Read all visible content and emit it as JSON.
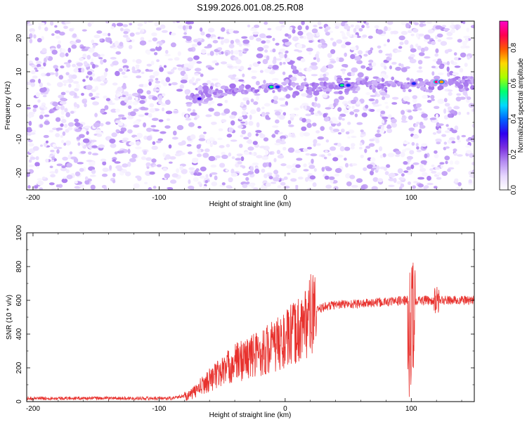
{
  "figure_title": "S199.2026.001.08.25.R08",
  "chart_data": [
    {
      "type": "heatmap",
      "title": "S199.2026.001.08.25.R08",
      "xlabel": "Height of straight line (km)",
      "ylabel": "Frequency (Hz)",
      "xlim": [
        -205,
        150
      ],
      "ylim": [
        -25,
        25
      ],
      "x_ticks": [
        -200,
        -100,
        0,
        100
      ],
      "y_ticks": [
        -20,
        -10,
        0,
        10,
        20
      ],
      "colorbar": {
        "label": "Normalized spectral amplitude",
        "range": [
          0,
          0.95
        ],
        "ticks": [
          0.0,
          0.2,
          0.4,
          0.6,
          0.8
        ],
        "tick_labels": [
          "0.0",
          "0.2",
          "0.4",
          "0.6",
          "0.8"
        ],
        "colors": [
          "#ffffff",
          "#e6d6ff",
          "#b58cf2",
          "#7a2ee0",
          "#2f00f0",
          "#0060ff",
          "#00d8ff",
          "#00ff70",
          "#a8ff00",
          "#ffd800",
          "#ff5a00",
          "#ff0050",
          "#ff00c8"
        ]
      },
      "signal_band": {
        "x_start": -75,
        "frequency_hz": [
          [
            -70,
            3
          ],
          [
            -10,
            5.5
          ],
          [
            45,
            6
          ],
          [
            100,
            6.5
          ],
          [
            125,
            7
          ],
          [
            150,
            7
          ]
        ]
      },
      "hotspots": [
        {
          "x": -68,
          "f": 2,
          "value": 0.3
        },
        {
          "x": -11,
          "f": 5.5,
          "value": 0.55
        },
        {
          "x": -6,
          "f": 5.5,
          "value": 0.35
        },
        {
          "x": 45,
          "f": 6,
          "value": 0.55
        },
        {
          "x": 50,
          "f": 6,
          "value": 0.35
        },
        {
          "x": 102,
          "f": 6.5,
          "value": 0.35
        },
        {
          "x": 120,
          "f": 7,
          "value": 0.9
        },
        {
          "x": 124,
          "f": 7,
          "value": 0.75
        }
      ]
    },
    {
      "type": "line",
      "xlabel": "Height of straight line (km)",
      "ylabel": "SNR (10 * v/v)",
      "xlim": [
        -205,
        150
      ],
      "ylim": [
        0,
        1000
      ],
      "x_ticks": [
        -200,
        -100,
        0,
        100
      ],
      "y_ticks": [
        0,
        200,
        400,
        600,
        800,
        1000
      ],
      "series": [
        {
          "name": "SNR",
          "color": "#e8322e",
          "profile": [
            [
              -205,
              20
            ],
            [
              -90,
              20
            ],
            [
              -75,
              40
            ],
            [
              -60,
              130
            ],
            [
              -40,
              230
            ],
            [
              -20,
              290
            ],
            [
              0,
              360
            ],
            [
              10,
              420
            ],
            [
              20,
              510
            ],
            [
              30,
              560
            ],
            [
              40,
              575
            ],
            [
              60,
              580
            ],
            [
              80,
              590
            ],
            [
              97,
              600
            ],
            [
              100,
              330
            ],
            [
              103,
              600
            ],
            [
              120,
              600
            ],
            [
              150,
              600
            ]
          ]
        }
      ]
    }
  ]
}
